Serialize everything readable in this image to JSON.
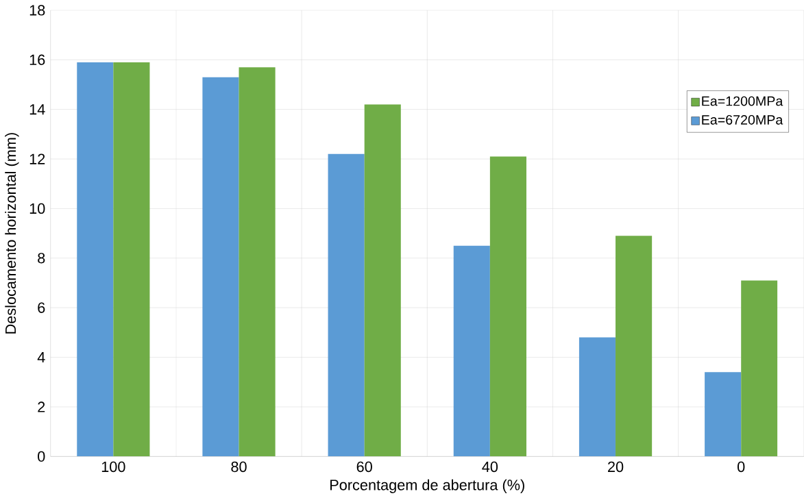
{
  "chart_data": {
    "type": "bar",
    "xlabel": "Porcentagem de abertura (%)",
    "ylabel": "Deslocamento horizontal (mm)",
    "categories": [
      "100",
      "80",
      "60",
      "40",
      "20",
      "0"
    ],
    "series": [
      {
        "name": "Ea=6720MPa",
        "color": "#5b9bd5",
        "values": [
          15.9,
          15.3,
          12.2,
          8.5,
          4.8,
          3.4
        ]
      },
      {
        "name": "Ea=1200MPa",
        "color": "#70ad47",
        "values": [
          15.9,
          15.7,
          14.2,
          12.1,
          8.9,
          7.1
        ]
      }
    ],
    "ylim": [
      0,
      18
    ],
    "yticks": [
      0,
      2,
      4,
      6,
      8,
      10,
      12,
      14,
      16,
      18
    ],
    "grid": true,
    "legend": "top right"
  }
}
